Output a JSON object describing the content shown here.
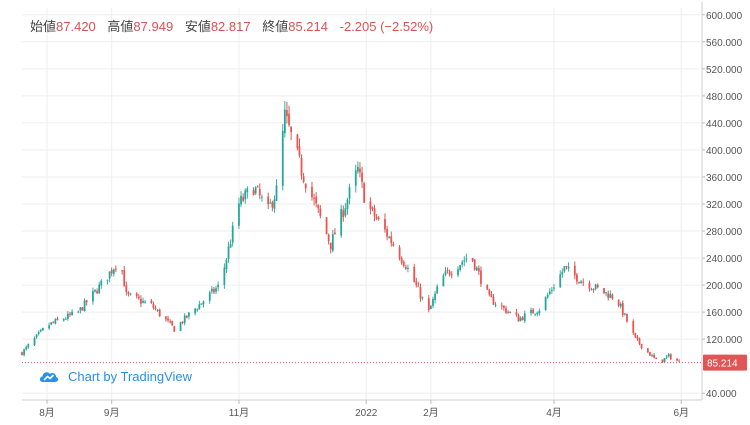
{
  "ohlc": {
    "open_label": "始値",
    "open": "87.420",
    "high_label": "高値",
    "high": "87.949",
    "low_label": "安値",
    "low": "82.817",
    "close_label": "終値",
    "close": "85.214",
    "change": "-2.205 (−2.52%)"
  },
  "watermark": {
    "text": "Chart by TradingView",
    "icon": "tradingview-cloud-icon"
  },
  "colors": {
    "up": "#26a69a",
    "down": "#ef5350",
    "up_wick": "#26a69a",
    "down_wick": "#c44e4a",
    "price_line": "#e05555",
    "grid": "#eeeeee"
  },
  "chart_data": {
    "type": "candlestick",
    "y_axis": {
      "min": 30,
      "max": 610,
      "side": "right",
      "ticks": [
        "600.000",
        "560.000",
        "520.000",
        "480.000",
        "440.000",
        "400.000",
        "360.000",
        "320.000",
        "280.000",
        "240.000",
        "200.000",
        "160.000",
        "120.000",
        "40.000"
      ],
      "tick_values": [
        600,
        560,
        520,
        480,
        440,
        400,
        360,
        320,
        280,
        240,
        200,
        160,
        120,
        40
      ]
    },
    "x_axis": {
      "labels": [
        "8月",
        "9月",
        "11月",
        "2022",
        "2月",
        "4月",
        "6月"
      ],
      "label_dates": [
        "2021-08-01",
        "2021-09-01",
        "2021-11-01",
        "2022-01-01",
        "2022-02-01",
        "2022-04-01",
        "2022-06-01"
      ]
    },
    "last_price": 85.214,
    "last_price_label": "85.214",
    "grid": true,
    "series_keypoints": {
      "dates": [
        "2021-07-20",
        "2021-08-01",
        "2021-08-16",
        "2021-08-28",
        "2021-09-05",
        "2021-09-08",
        "2021-09-20",
        "2021-10-01",
        "2021-10-16",
        "2021-10-23",
        "2021-11-01",
        "2021-11-08",
        "2021-11-15",
        "2021-11-19",
        "2021-11-23",
        "2021-12-01",
        "2021-12-15",
        "2021-12-28",
        "2022-01-01",
        "2022-01-10",
        "2022-01-20",
        "2022-01-31",
        "2022-02-06",
        "2022-02-20",
        "2022-03-01",
        "2022-03-15",
        "2022-03-25",
        "2022-04-06",
        "2022-04-15",
        "2022-05-01",
        "2022-05-10",
        "2022-05-21",
        "2022-05-26",
        "2022-06-01"
      ],
      "close": [
        100,
        140,
        160,
        205,
        240,
        185,
        170,
        135,
        180,
        200,
        320,
        345,
        310,
        340,
        450,
        370,
        260,
        370,
        320,
        280,
        230,
        160,
        210,
        245,
        180,
        150,
        165,
        225,
        205,
        180,
        120,
        85,
        95,
        85
      ]
    }
  }
}
